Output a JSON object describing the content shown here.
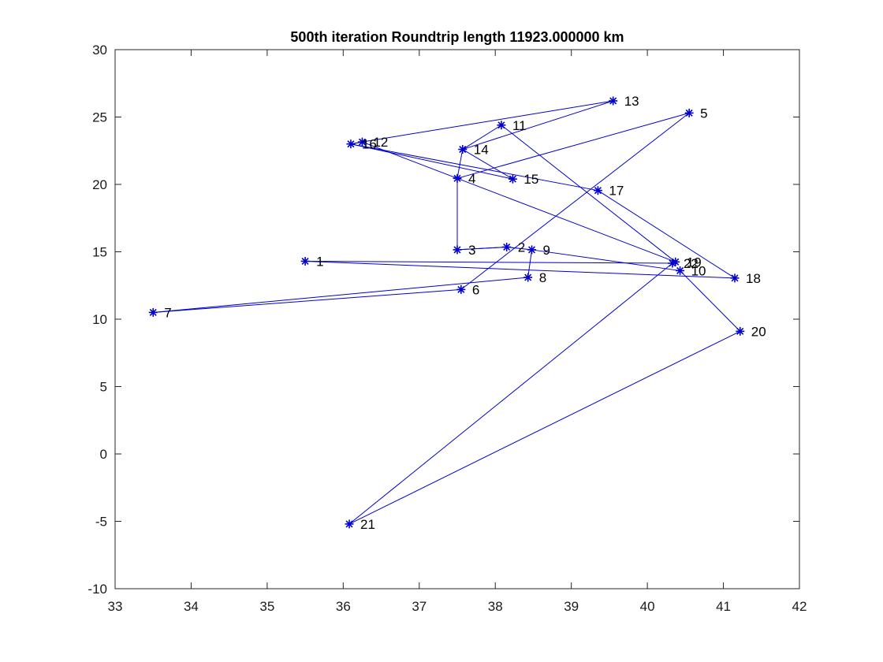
{
  "chart_data": {
    "type": "line",
    "title": "500th iteration Roundtrip length   11923.000000 km",
    "xlabel": "",
    "ylabel": "",
    "xlim": [
      33,
      42
    ],
    "ylim": [
      -10,
      30
    ],
    "xticks": [
      33,
      34,
      35,
      36,
      37,
      38,
      39,
      40,
      41,
      42
    ],
    "yticks": [
      -10,
      -5,
      0,
      5,
      10,
      15,
      20,
      25,
      30
    ],
    "grid": false,
    "line_color": "#0000cc",
    "marker": "asterisk",
    "points": [
      {
        "label": "1",
        "x": 35.5,
        "y": 14.3
      },
      {
        "label": "2",
        "x": 38.15,
        "y": 15.35
      },
      {
        "label": "3",
        "x": 37.5,
        "y": 15.15
      },
      {
        "label": "4",
        "x": 37.5,
        "y": 20.45
      },
      {
        "label": "5",
        "x": 40.55,
        "y": 25.3
      },
      {
        "label": "6",
        "x": 37.55,
        "y": 12.2
      },
      {
        "label": "7",
        "x": 33.5,
        "y": 10.5
      },
      {
        "label": "8",
        "x": 38.43,
        "y": 13.1
      },
      {
        "label": "9",
        "x": 38.48,
        "y": 15.15
      },
      {
        "label": "10",
        "x": 40.43,
        "y": 13.6
      },
      {
        "label": "11",
        "x": 38.08,
        "y": 24.4
      },
      {
        "label": "12",
        "x": 36.25,
        "y": 23.15
      },
      {
        "label": "13",
        "x": 39.55,
        "y": 26.2
      },
      {
        "label": "14",
        "x": 37.57,
        "y": 22.6
      },
      {
        "label": "15",
        "x": 38.23,
        "y": 20.4
      },
      {
        "label": "16",
        "x": 36.1,
        "y": 23.0
      },
      {
        "label": "17",
        "x": 39.35,
        "y": 19.55
      },
      {
        "label": "18",
        "x": 41.15,
        "y": 13.05
      },
      {
        "label": "19",
        "x": 40.37,
        "y": 14.25
      },
      {
        "label": "20",
        "x": 41.22,
        "y": 9.1
      },
      {
        "label": "21",
        "x": 36.08,
        "y": -5.2
      },
      {
        "label": "22",
        "x": 40.33,
        "y": 14.15
      }
    ],
    "route": [
      1,
      22,
      21,
      20,
      10,
      9,
      2,
      3,
      4,
      5,
      6,
      7,
      8,
      9,
      2,
      3,
      4,
      14,
      11,
      19,
      12,
      16,
      15,
      14,
      13,
      12,
      16,
      17,
      18,
      1
    ]
  }
}
